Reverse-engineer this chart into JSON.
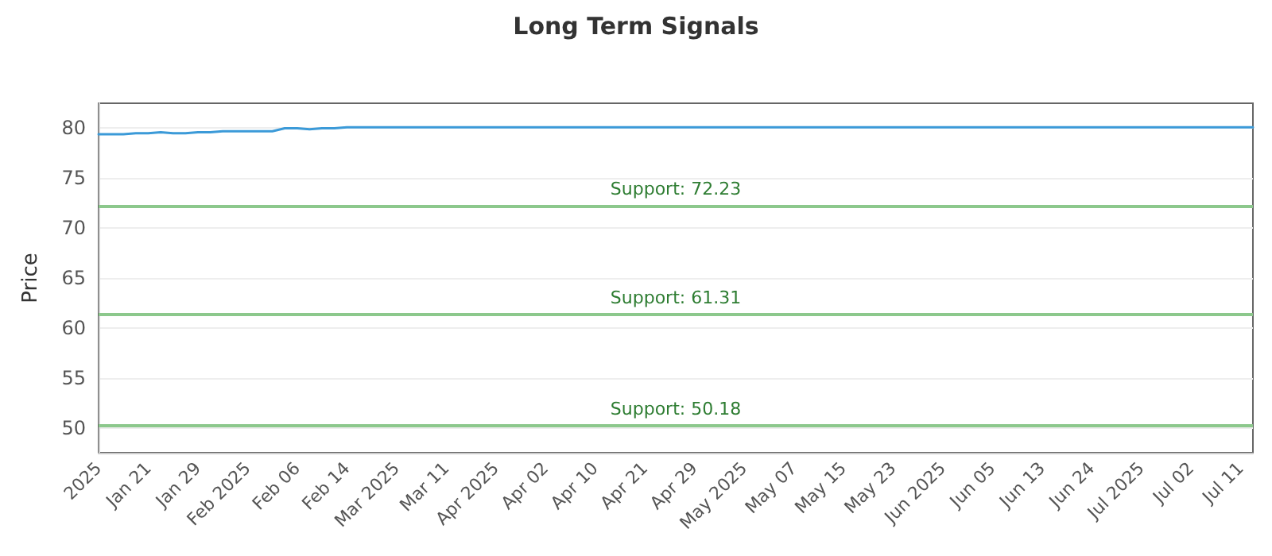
{
  "chart_data": {
    "type": "line",
    "title": "Long Term Signals",
    "ylabel": "Price",
    "categories": [
      "2025",
      null,
      null,
      null,
      "Jan 21",
      null,
      null,
      null,
      "Jan 29",
      null,
      null,
      null,
      "Feb 2025",
      null,
      null,
      null,
      "Feb 06",
      null,
      null,
      null,
      "Feb 14",
      null,
      null,
      null,
      "Mar 2025",
      null,
      null,
      null,
      "Mar 11",
      null,
      null,
      null,
      "Apr 2025",
      null,
      null,
      null,
      "Apr 02",
      null,
      null,
      null,
      "Apr 10",
      null,
      null,
      null,
      "Apr 21",
      null,
      null,
      null,
      "Apr 29",
      null,
      null,
      null,
      "May 2025",
      null,
      null,
      null,
      "May 07",
      null,
      null,
      null,
      "May 15",
      null,
      null,
      null,
      "May 23",
      null,
      null,
      null,
      "Jun 2025",
      null,
      null,
      null,
      "Jun 05",
      null,
      null,
      null,
      "Jun 13",
      null,
      null,
      null,
      "Jun 24",
      null,
      null,
      null,
      "Jul 2025",
      null,
      null,
      null,
      "Jul 02",
      null,
      null,
      null,
      "Jul 11",
      null
    ],
    "series": [
      {
        "color": "#3b9ad8",
        "values": [
          79.4,
          79.4,
          79.4,
          79.5,
          79.5,
          79.6,
          79.5,
          79.5,
          79.6,
          79.6,
          79.7,
          79.7,
          79.7,
          79.7,
          79.7,
          80.0,
          80.0,
          79.9,
          80.0,
          80.0,
          80.1,
          80.1,
          80.1,
          80.1,
          80.1,
          80.1,
          80.1,
          80.1,
          80.1,
          80.1,
          80.1,
          80.1,
          80.1,
          80.1,
          80.1,
          80.1,
          80.1,
          80.1,
          80.1,
          80.1,
          80.1,
          80.1,
          80.1,
          80.1,
          80.1,
          80.1,
          80.1,
          80.1,
          80.1,
          80.1,
          80.1,
          80.1,
          80.1,
          80.1,
          80.1,
          80.1,
          80.1,
          80.1,
          80.1,
          80.1,
          80.1,
          80.1,
          80.1,
          80.1,
          80.1,
          80.1,
          80.1,
          80.1,
          80.1,
          80.1,
          80.1,
          80.1,
          80.1,
          80.1,
          80.1,
          80.1,
          80.1,
          80.1,
          80.1,
          80.1,
          80.1,
          80.1,
          80.1,
          80.1,
          80.1,
          80.1,
          80.1,
          80.1,
          80.1,
          80.1,
          80.1,
          80.1,
          80.1,
          80.1
        ]
      }
    ],
    "ylim": [
      47.5,
      82.5
    ],
    "yticks": [
      50,
      55,
      60,
      65,
      70,
      75,
      80
    ],
    "ref_lines": [
      {
        "axis": "y",
        "value": 72.23,
        "label": "Support: 72.23",
        "color": "#8cc88c"
      },
      {
        "axis": "y",
        "value": 61.31,
        "label": "Support: 61.31",
        "color": "#8cc88c"
      },
      {
        "axis": "y",
        "value": 50.18,
        "label": "Support: 50.18",
        "color": "#8cc88c"
      }
    ],
    "grid": "y",
    "marker": "none",
    "line_style": "solid"
  }
}
